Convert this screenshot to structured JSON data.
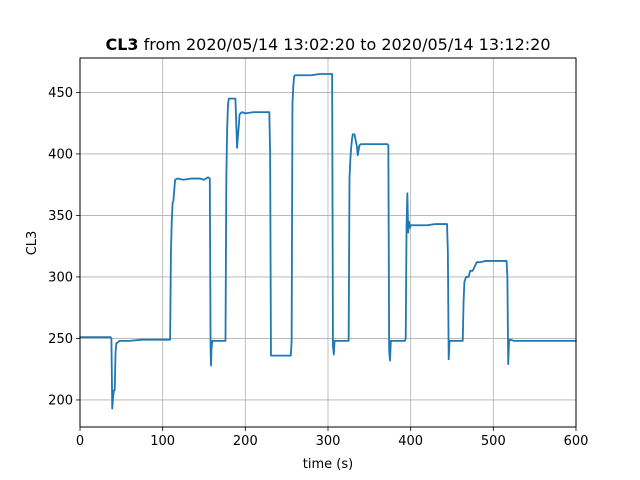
{
  "chart_data": {
    "type": "line",
    "title": {
      "bold": "CL3",
      "rest": " from 2020/05/14 13:02:20 to 2020/05/14 13:12:20"
    },
    "xlabel": "time (s)",
    "ylabel": "CL3",
    "xlim": [
      0,
      600
    ],
    "ylim": [
      178,
      478
    ],
    "xticks": [
      0,
      100,
      200,
      300,
      400,
      500,
      600
    ],
    "yticks": [
      200,
      250,
      300,
      350,
      400,
      450
    ],
    "grid": true,
    "line_color": "#1f77b4",
    "series": [
      {
        "x": [
          0,
          36,
          37,
          38,
          39,
          40,
          41,
          42,
          43,
          44,
          48,
          60,
          75,
          90,
          100,
          109,
          110,
          111,
          112,
          113,
          115,
          118,
          125,
          135,
          145,
          150,
          155,
          157,
          158,
          158.5,
          159,
          160,
          165,
          170,
          176,
          177,
          178,
          179,
          180,
          182,
          185,
          188,
          190,
          191,
          192,
          193,
          194,
          196,
          200,
          210,
          220,
          228,
          229,
          230,
          231,
          235,
          240,
          245,
          250,
          255,
          256,
          257,
          258,
          259,
          260,
          262,
          270,
          280,
          290,
          300,
          305,
          306,
          307,
          308,
          309,
          320,
          325,
          326,
          327,
          328,
          329,
          330,
          332,
          335,
          336,
          338,
          340,
          350,
          360,
          372,
          373,
          374,
          375,
          376,
          385,
          393,
          394,
          395,
          396,
          397,
          398,
          399,
          400,
          402,
          410,
          420,
          430,
          444,
          445,
          446,
          447,
          448,
          455,
          463,
          464,
          465,
          467,
          470,
          472,
          475,
          480,
          485,
          490,
          500,
          510,
          516,
          517,
          518,
          519,
          520,
          525,
          540,
          560,
          580,
          600
        ],
        "y": [
          251,
          251,
          251,
          250,
          193,
          202,
          208,
          208,
          239,
          246,
          248,
          248,
          249,
          249,
          249,
          249,
          320,
          345,
          360,
          362,
          379,
          380,
          379,
          380,
          380,
          379,
          381,
          380,
          241,
          228,
          241,
          248,
          248,
          248,
          248,
          380,
          420,
          440,
          445,
          445,
          445,
          445,
          405,
          414,
          422,
          432,
          433,
          434,
          433,
          434,
          434,
          434,
          434,
          400,
          236,
          236,
          236,
          236,
          236,
          236,
          248,
          440,
          455,
          463,
          464,
          464,
          464,
          464,
          465,
          465,
          465,
          244,
          237,
          248,
          248,
          248,
          248,
          380,
          395,
          405,
          412,
          416,
          416,
          406,
          399,
          407,
          408,
          408,
          408,
          408,
          407,
          240,
          232,
          248,
          248,
          248,
          250,
          340,
          368,
          336,
          345,
          340,
          342,
          342,
          342,
          342,
          343,
          343,
          320,
          233,
          248,
          248,
          248,
          248,
          280,
          296,
          300,
          300,
          305,
          305,
          312,
          312,
          313,
          313,
          313,
          313,
          300,
          229,
          248,
          249,
          248,
          248,
          248,
          248,
          248
        ]
      }
    ]
  }
}
